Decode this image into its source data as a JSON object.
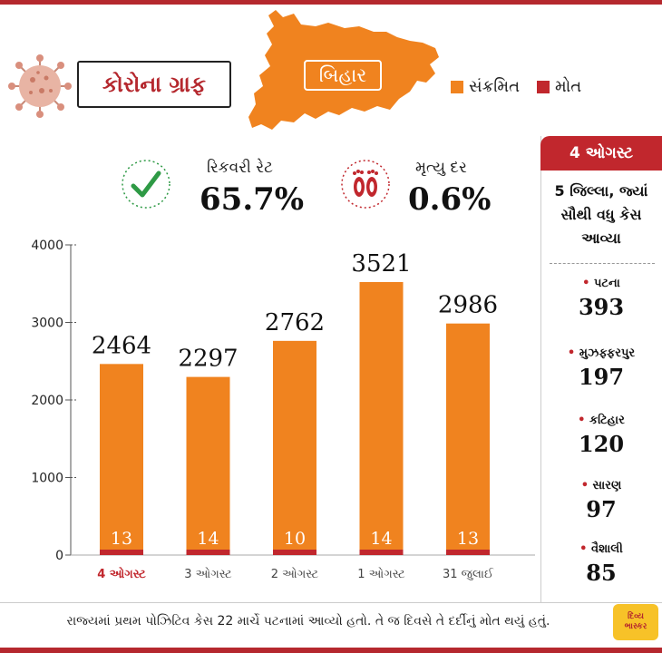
{
  "header": {
    "title": "કોરોના ગ્રાફ",
    "state": "બિહાર",
    "legend": [
      {
        "label": "સંક્રમિત",
        "color": "#f0831f"
      },
      {
        "label": "મોત",
        "color": "#c1272d"
      }
    ]
  },
  "stats": {
    "recovery_label": "રિકવરી રેટ",
    "recovery_value": "65.7%",
    "recovery_icon": "checkmark-icon",
    "death_label": "મૃત્યુ દર",
    "death_value": "0.6%",
    "death_icon": "footprints-icon"
  },
  "chart_data": {
    "type": "bar",
    "categories": [
      "4 ઓગસ્ટ",
      "3 ઓગસ્ટ",
      "2 ઓગસ્ટ",
      "1 ઓગસ્ટ",
      "31 જુલાઈ"
    ],
    "series": [
      {
        "name": "સંક્રમિત",
        "values": [
          2464,
          2297,
          2762,
          3521,
          2986
        ],
        "color": "#f0831f"
      },
      {
        "name": "મોત",
        "values": [
          13,
          14,
          10,
          14,
          13
        ],
        "color": "#c1272d"
      }
    ],
    "yticks": [
      0,
      1000,
      2000,
      3000,
      4000
    ],
    "ytick_labels": [
      "0",
      "1000",
      "2000",
      "3000",
      "4000"
    ],
    "ylim": [
      0,
      4000
    ],
    "highlight_category_color": "#c1272d",
    "grid": false
  },
  "sidebar": {
    "date": "4 ઓગસ્ટ",
    "subtitle": "5 જિલ્લા, જ્યાં સૌથી વધુ કેસ આવ્યા",
    "districts": [
      {
        "name": "પટના",
        "count": "393"
      },
      {
        "name": "મુઝફ્ફરપુર",
        "count": "197"
      },
      {
        "name": "કટિહાર",
        "count": "120"
      },
      {
        "name": "સારણ",
        "count": "97"
      },
      {
        "name": "વૈશાલી",
        "count": "85"
      }
    ]
  },
  "footer": {
    "note": "રાજ્યમાં પ્રથમ પોઝિટિવ કેસ 22 માર્ચે પટનામાં આવ્યો હતો. તે જ દિવસે તે દર્દીનું મોત થયું હતું.",
    "logo_line1": "દિવ્ય",
    "logo_line2": "ભાસ્કર"
  }
}
